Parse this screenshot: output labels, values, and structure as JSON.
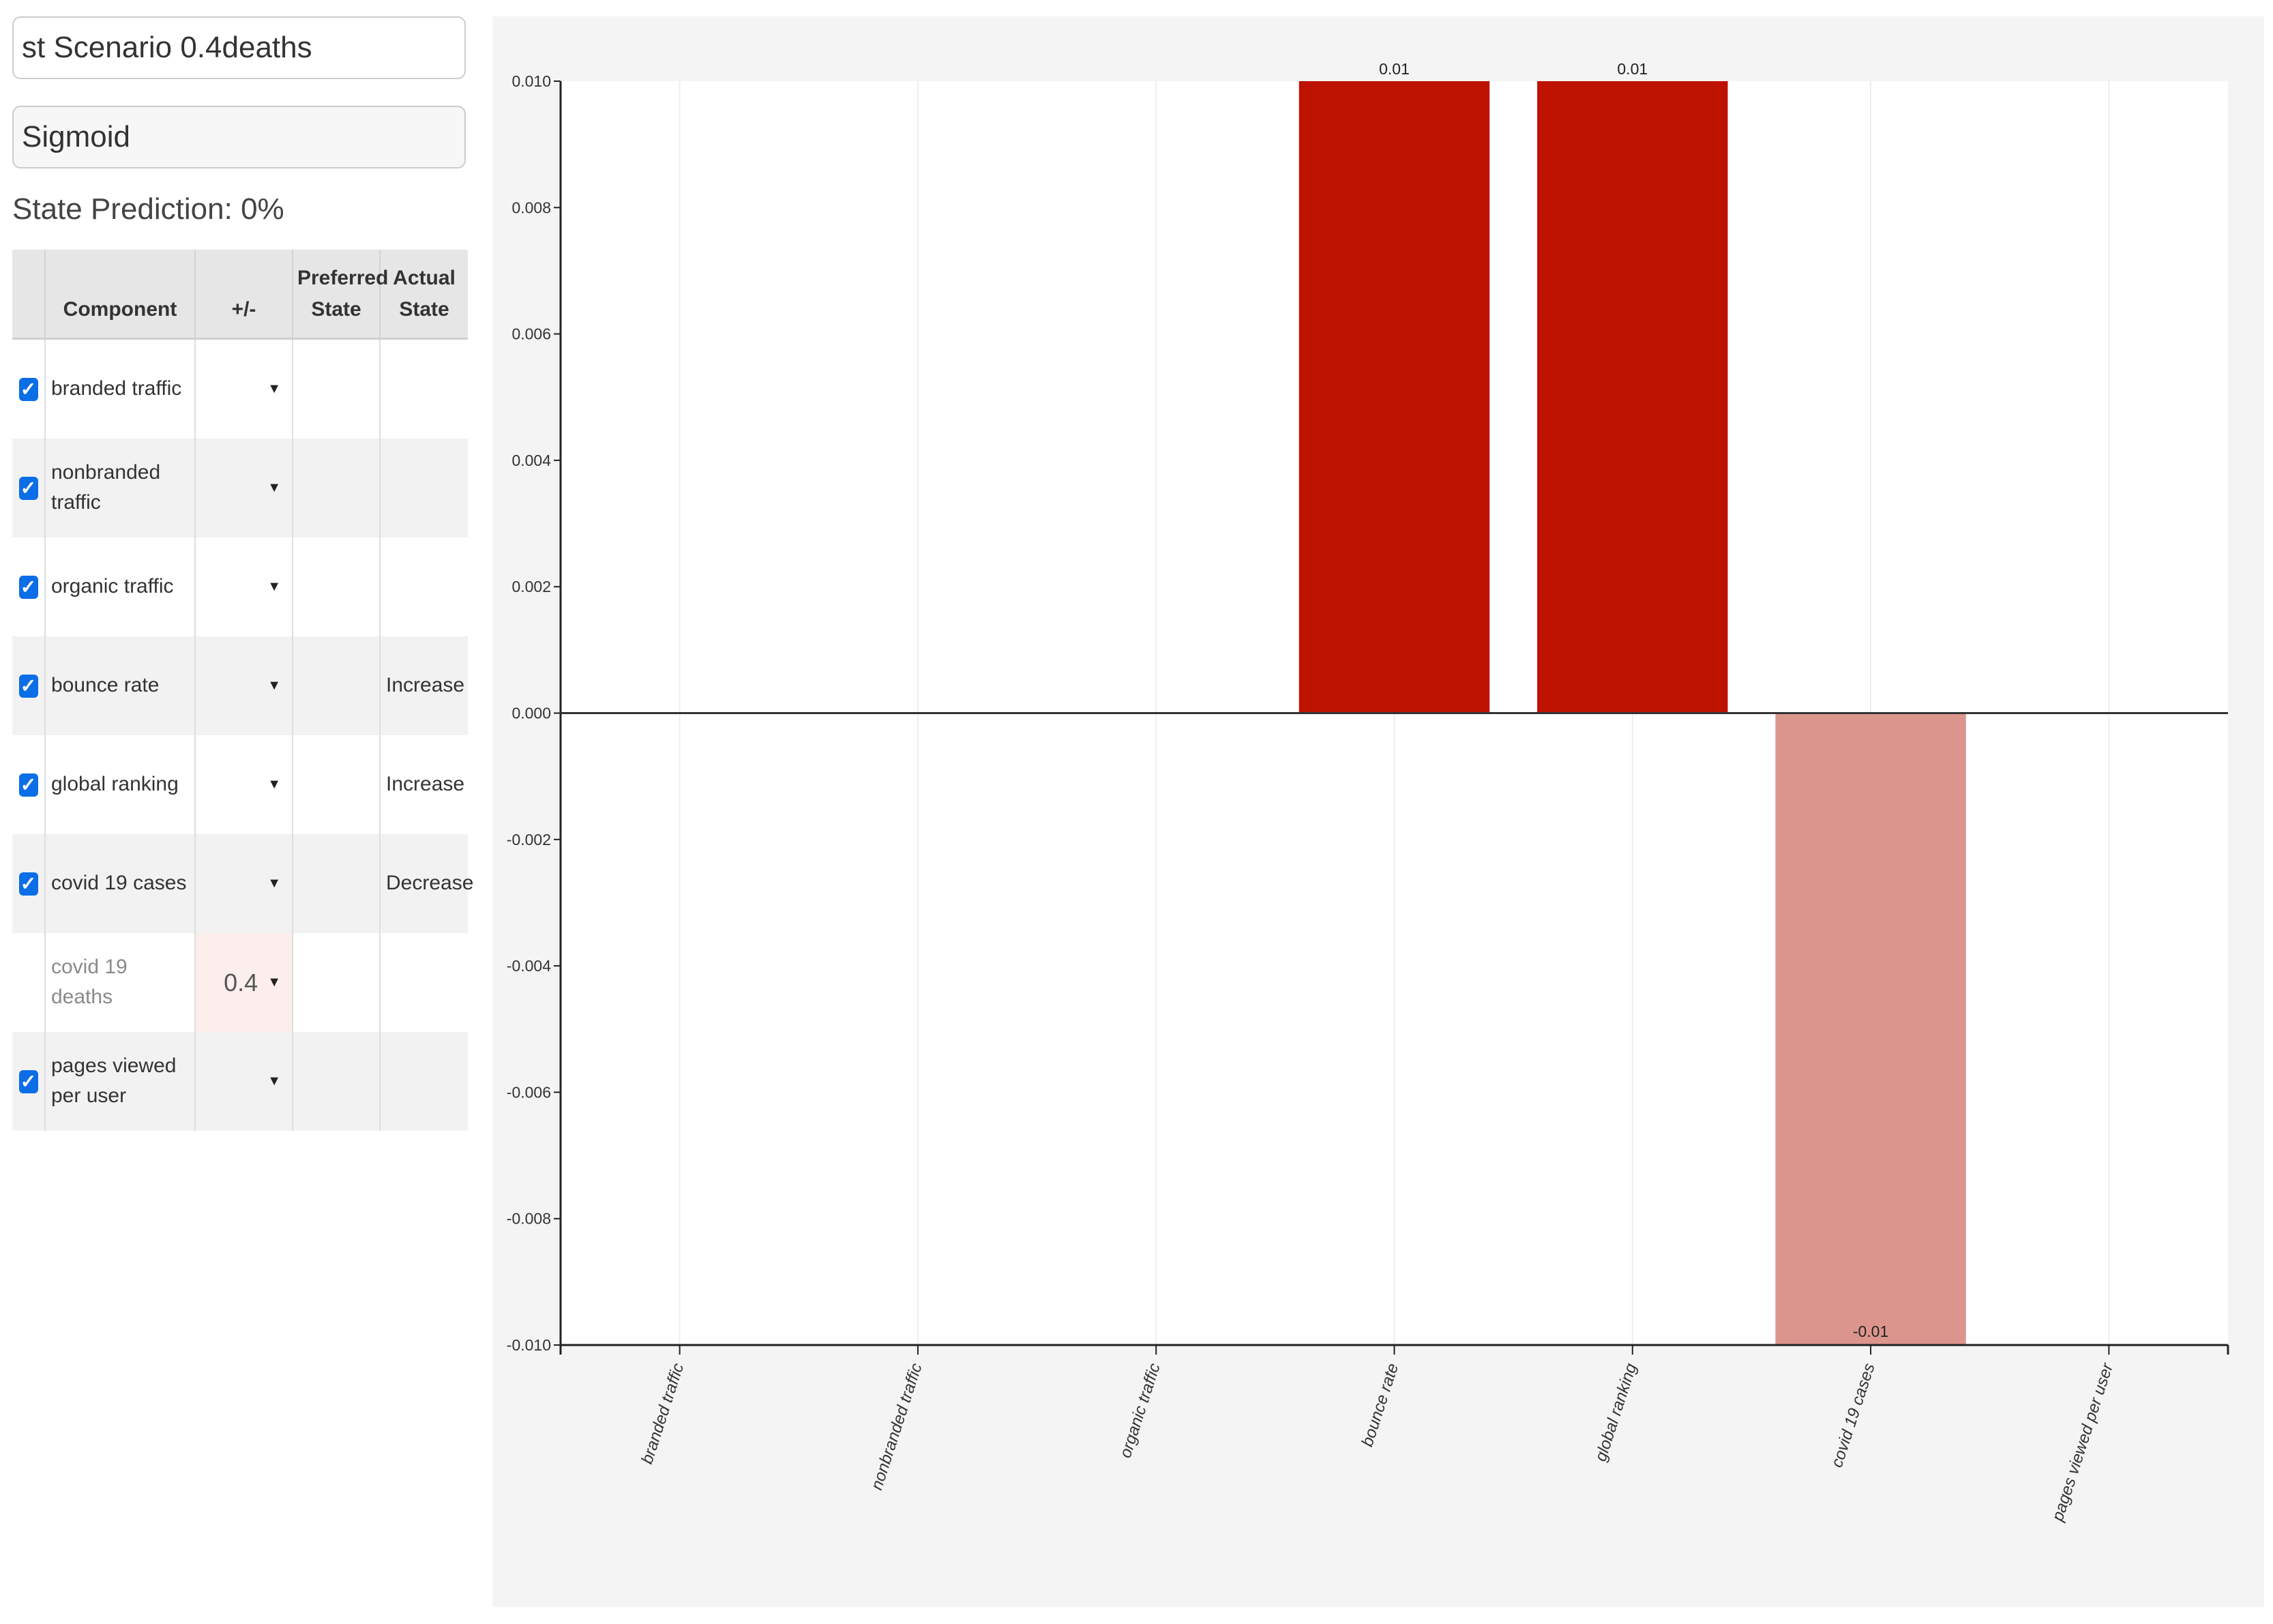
{
  "scenario_name": "st Scenario 0.4deaths",
  "method": "Sigmoid",
  "state_prediction": "State Prediction: 0%",
  "table": {
    "headers": {
      "component": "Component",
      "adjust": "+/-",
      "preferred": "Preferred State",
      "actual": "Actual State"
    },
    "rows": [
      {
        "name": "branded traffic",
        "checked": true,
        "adjust": "",
        "preferred": "",
        "actual": ""
      },
      {
        "name": "nonbranded traffic",
        "checked": true,
        "adjust": "",
        "preferred": "",
        "actual": ""
      },
      {
        "name": "organic traffic",
        "checked": true,
        "adjust": "",
        "preferred": "",
        "actual": ""
      },
      {
        "name": "bounce rate",
        "checked": true,
        "adjust": "",
        "preferred": "",
        "actual": "Increase"
      },
      {
        "name": "global ranking",
        "checked": true,
        "adjust": "",
        "preferred": "",
        "actual": "Increase"
      },
      {
        "name": "covid 19 cases",
        "checked": true,
        "adjust": "",
        "preferred": "",
        "actual": "Decrease"
      },
      {
        "name": "covid 19 deaths",
        "checked": false,
        "adjust": "0.4",
        "preferred": "",
        "actual": ""
      },
      {
        "name": "pages viewed per user",
        "checked": true,
        "adjust": "",
        "preferred": "",
        "actual": ""
      }
    ]
  },
  "chart_data": {
    "type": "bar",
    "categories": [
      "branded traffic",
      "nonbranded traffic",
      "organic traffic",
      "bounce rate",
      "global ranking",
      "covid 19 cases",
      "pages viewed per user"
    ],
    "values": [
      0,
      0,
      0,
      0.01,
      0.01,
      -0.01,
      0
    ],
    "data_labels": [
      "",
      "",
      "",
      "0.01",
      "0.01",
      "-0.01",
      ""
    ],
    "ylim": [
      -0.01,
      0.01
    ],
    "yticks": [
      "0.010",
      "0.008",
      "0.006",
      "0.004",
      "0.002",
      "0.000",
      "-0.002",
      "-0.004",
      "-0.006",
      "-0.008",
      "-0.010"
    ],
    "positive_color": "#be1200",
    "negative_color": "#db958d",
    "grid": "vertical light lines",
    "legend": "none"
  }
}
